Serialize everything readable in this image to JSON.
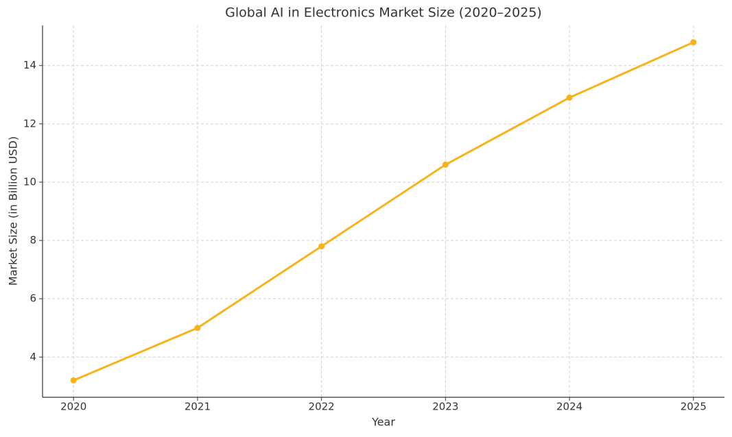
{
  "chart_data": {
    "type": "line",
    "title": "Global AI in Electronics Market Size (2020–2025)",
    "x_label": "Year",
    "y_label": "Market Size (in Billion USD)",
    "x": [
      2020,
      2021,
      2022,
      2023,
      2024,
      2025
    ],
    "values": [
      3.2,
      5.0,
      7.8,
      10.6,
      12.9,
      14.8
    ],
    "color": "#f9b31a",
    "xlim": [
      2019.75,
      2025.25
    ],
    "xticks": [
      2020,
      2021,
      2022,
      2023,
      2024,
      2025
    ],
    "ylim": [
      2.62,
      15.38
    ],
    "yticks": [
      4,
      6,
      8,
      10,
      12,
      14
    ],
    "grid": true
  }
}
